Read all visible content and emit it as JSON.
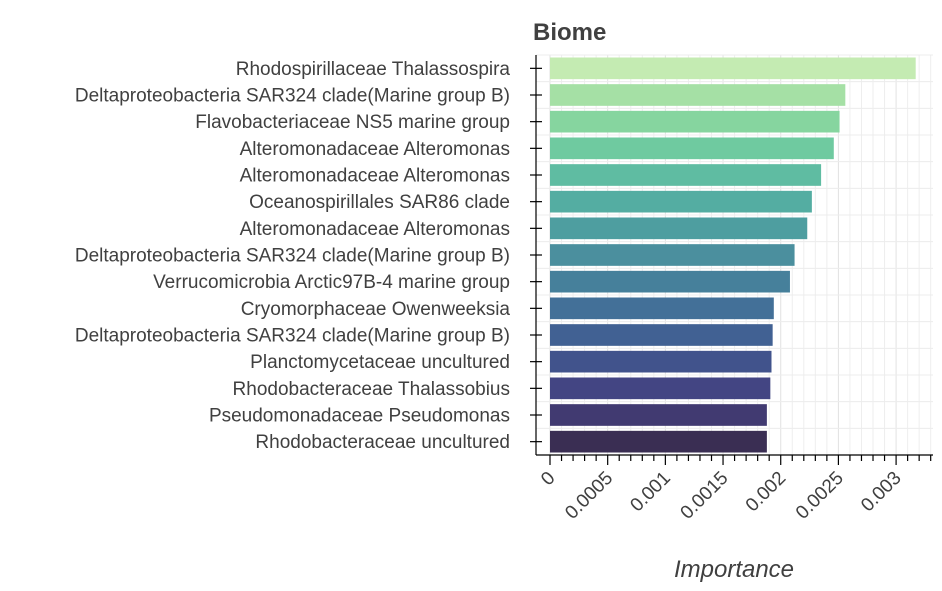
{
  "chart_data": {
    "type": "bar",
    "orientation": "horizontal",
    "title": "Biome",
    "xlabel": "Importance",
    "ylabel": "",
    "xlim": [
      0,
      0.00332
    ],
    "x_ticks": [
      0,
      0.0005,
      0.001,
      0.0015,
      0.002,
      0.0025,
      0.003
    ],
    "x_tick_labels": [
      "0",
      "0.0005",
      "0.001",
      "0.0015",
      "0.002",
      "0.0025",
      "0.003"
    ],
    "grid": true,
    "legend": "none",
    "categories": [
      "Rhodospirillaceae Thalassospira",
      "Deltaproteobacteria SAR324 clade(Marine group B)",
      "Flavobacteriaceae NS5 marine group",
      "Alteromonadaceae Alteromonas",
      "Alteromonadaceae Alteromonas",
      "Oceanospirillales SAR86 clade",
      "Alteromonadaceae Alteromonas",
      "Deltaproteobacteria SAR324 clade(Marine group B)",
      "Verrucomicrobia Arctic97B-4 marine group",
      "Cryomorphaceae Owenweeksia",
      "Deltaproteobacteria SAR324 clade(Marine group B)",
      "Planctomycetaceae uncultured",
      "Rhodobacteraceae Thalassobius",
      "Pseudomonadaceae Pseudomonas",
      "Rhodobacteraceae uncultured"
    ],
    "values": [
      0.00317,
      0.00256,
      0.00251,
      0.00246,
      0.00235,
      0.00227,
      0.00223,
      0.00212,
      0.00208,
      0.00194,
      0.00193,
      0.00192,
      0.00191,
      0.00188,
      0.00188
    ],
    "colors": [
      "#c4ebb2",
      "#a5e0a5",
      "#86d59f",
      "#6fcaa0",
      "#5fbca2",
      "#54ada2",
      "#4e9ea0",
      "#4b8f9e",
      "#46809b",
      "#437098",
      "#416193",
      "#41538c",
      "#434583",
      "#413a71",
      "#3a2e53"
    ]
  }
}
